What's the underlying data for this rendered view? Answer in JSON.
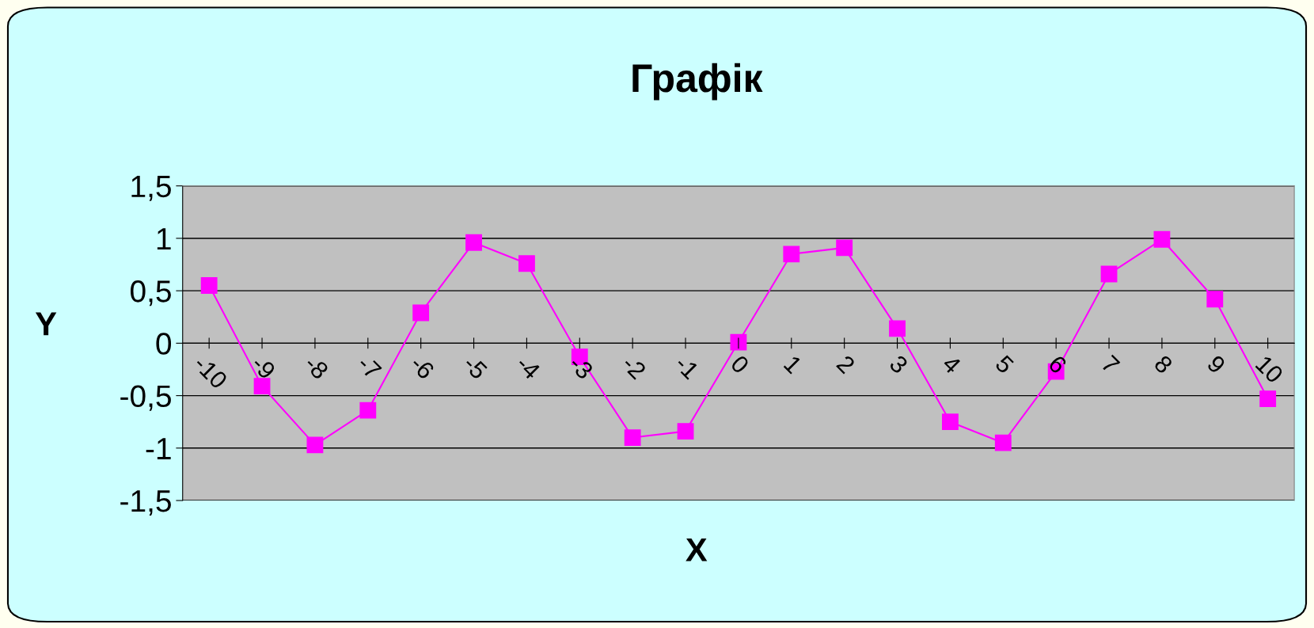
{
  "chart_data": {
    "type": "line",
    "title": "Графік",
    "xlabel": "X",
    "ylabel": "Y",
    "categories": [
      "-10",
      "-9",
      "-8",
      "-7",
      "-6",
      "-5",
      "-4",
      "-3",
      "-2",
      "-1",
      "0",
      "1",
      "2",
      "3",
      "4",
      "5",
      "6",
      "7",
      "8",
      "9",
      "10"
    ],
    "series": [
      {
        "color": "#ff00ff",
        "values": [
          0.55,
          -0.41,
          -0.97,
          -0.64,
          0.29,
          0.96,
          0.76,
          -0.13,
          -0.9,
          -0.84,
          0.01,
          0.85,
          0.91,
          0.14,
          -0.75,
          -0.95,
          -0.27,
          0.66,
          0.99,
          0.42,
          -0.53
        ]
      }
    ],
    "ylim": [
      -1.5,
      1.5
    ],
    "yticks": [
      {
        "value": -1.5,
        "label": "-1,5"
      },
      {
        "value": -1,
        "label": "-1"
      },
      {
        "value": -0.5,
        "label": "-0,5"
      },
      0,
      {
        "value": 0.5,
        "label": "0,5"
      },
      1,
      {
        "value": 1.5,
        "label": "1,5"
      }
    ],
    "grid": "y",
    "marker": "square",
    "line_style": "solid"
  }
}
